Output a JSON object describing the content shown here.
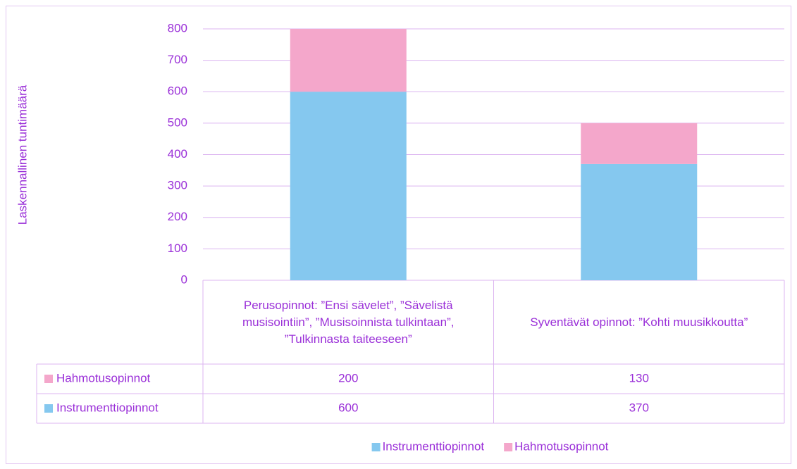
{
  "chart_data": {
    "type": "stacked-bar",
    "y_label": "Laskennallinen tuntimäärä",
    "categories": [
      "Perusopinnot: ”Ensi sävelet”, ”Sävelistä musisointiin”, ”Musisoinnista tulkintaan”, ”Tulkinnasta taiteeseen”",
      "Syventävät opinnot: ”Kohti muusikkoutta”"
    ],
    "series": [
      {
        "name": "Instrumenttiopinnot",
        "color": "#85c8ef",
        "values": [
          600,
          370
        ]
      },
      {
        "name": "Hahmotusopinnot",
        "color": "#f4a7cb",
        "values": [
          200,
          130
        ]
      }
    ],
    "ylim": [
      0,
      800
    ],
    "yticks": [
      0,
      100,
      200,
      300,
      400,
      500,
      600,
      700,
      800
    ],
    "grid": true,
    "data_table": true,
    "legend": "bottom"
  }
}
